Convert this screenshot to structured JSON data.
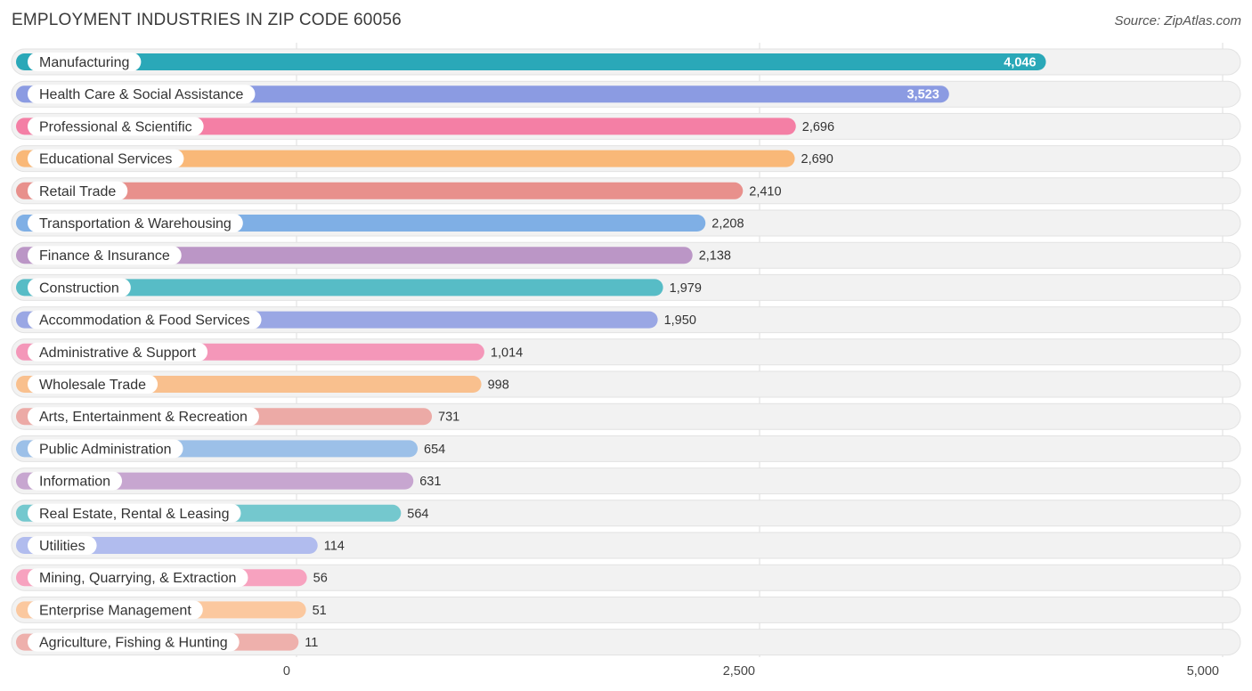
{
  "header": {
    "title": "EMPLOYMENT INDUSTRIES IN ZIP CODE 60056",
    "source": "Source: ZipAtlas.com"
  },
  "chart_data": {
    "type": "bar",
    "orientation": "horizontal",
    "title": "EMPLOYMENT INDUSTRIES IN ZIP CODE 60056",
    "xlabel": "",
    "ylabel": "",
    "xlim": [
      0,
      5000
    ],
    "x_ticks": [
      0,
      2500,
      5000
    ],
    "x_tick_labels": [
      "0",
      "2,500",
      "5,000"
    ],
    "grid": true,
    "categories": [
      "Manufacturing",
      "Health Care & Social Assistance",
      "Professional & Scientific",
      "Educational Services",
      "Retail Trade",
      "Transportation & Warehousing",
      "Finance & Insurance",
      "Construction",
      "Accommodation & Food Services",
      "Administrative & Support",
      "Wholesale Trade",
      "Arts, Entertainment & Recreation",
      "Public Administration",
      "Information",
      "Real Estate, Rental & Leasing",
      "Utilities",
      "Mining, Quarrying, & Extraction",
      "Enterprise Management",
      "Agriculture, Fishing & Hunting"
    ],
    "values": [
      4046,
      3523,
      2696,
      2690,
      2410,
      2208,
      2138,
      1979,
      1950,
      1014,
      998,
      731,
      654,
      631,
      564,
      114,
      56,
      51,
      11
    ],
    "value_labels": [
      "4,046",
      "3,523",
      "2,696",
      "2,690",
      "2,410",
      "2,208",
      "2,138",
      "1,979",
      "1,950",
      "1,014",
      "998",
      "731",
      "654",
      "631",
      "564",
      "114",
      "56",
      "51",
      "11"
    ],
    "colors": [
      "#2aa8b8",
      "#8b9be2",
      "#f47fa5",
      "#f9b878",
      "#e8908c",
      "#7fafe5",
      "#bb96c6",
      "#57bcc6",
      "#9aa7e4",
      "#f497b9",
      "#f9c08e",
      "#ecaaa6",
      "#9cc0e8",
      "#c7a6d0",
      "#74c8ce",
      "#b1bcee",
      "#f7a2bf",
      "#fbc89f",
      "#eeb0ac"
    ]
  }
}
